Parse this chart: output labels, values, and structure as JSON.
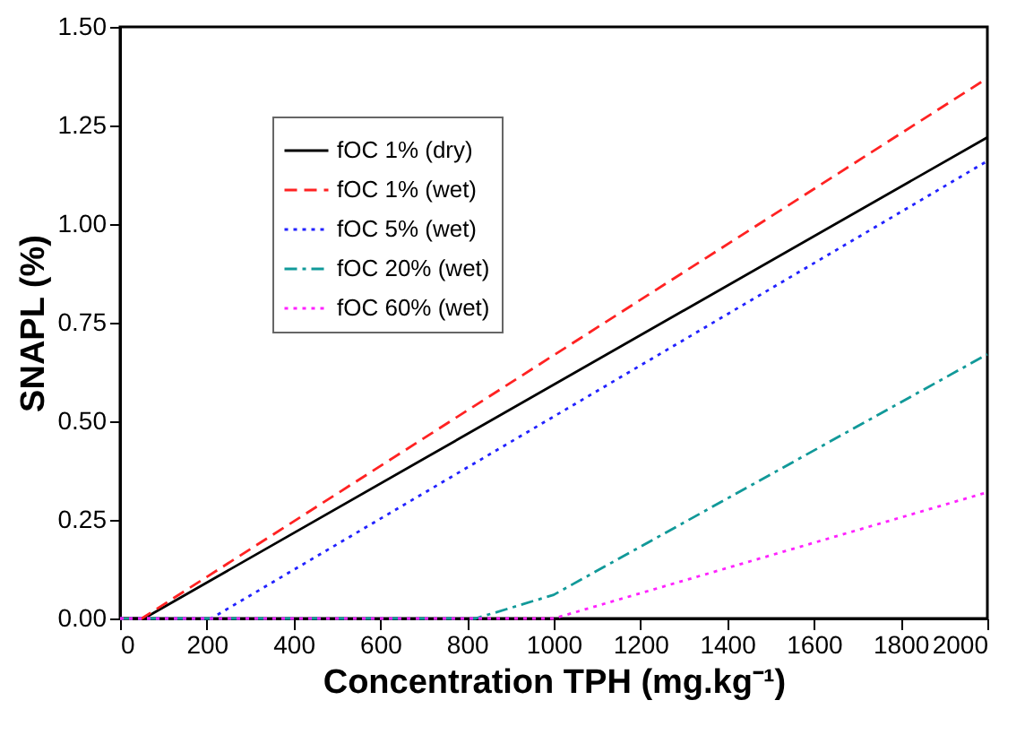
{
  "chart_data": {
    "type": "line",
    "xlabel": "Concentration TPH (mg.kg⁻¹)",
    "ylabel": "SNAPL (%)",
    "xlim": [
      0,
      2000
    ],
    "xticks": [
      0,
      200,
      400,
      600,
      800,
      1000,
      1200,
      1400,
      1600,
      1800,
      2000
    ],
    "ylim": [
      0,
      1.5
    ],
    "yticks": [
      {
        "value": 0,
        "label": "0.00"
      },
      {
        "value": 0.25,
        "label": "0.25"
      },
      {
        "value": 0.5,
        "label": "0.50"
      },
      {
        "value": 0.75,
        "label": "0.75"
      },
      {
        "value": 1,
        "label": "1.00"
      },
      {
        "value": 1.25,
        "label": "1.25"
      },
      {
        "value": 1.5,
        "label": "1.50"
      }
    ],
    "grid": false,
    "legend": "top left",
    "marker": "none",
    "series": [
      {
        "name": "fOC 1% (dry)",
        "color": "#000000",
        "line_style": "solid",
        "x": [
          0,
          55,
          2000
        ],
        "values": [
          0,
          0,
          1.22
        ]
      },
      {
        "name": "fOC 1% (wet)",
        "color": "#ff2222",
        "line_style": "dashed",
        "x": [
          0,
          50,
          2000
        ],
        "values": [
          0,
          0,
          1.37
        ]
      },
      {
        "name": "fOC 5% (wet)",
        "color": "#2222ff",
        "line_style": "dotted",
        "x": [
          0,
          210,
          2000
        ],
        "values": [
          0,
          0,
          1.16
        ]
      },
      {
        "name": "fOC 20% (wet)",
        "color": "#119999",
        "line_style": "dashdot",
        "x": [
          0,
          820,
          1000,
          2000
        ],
        "values": [
          0,
          0,
          0.06,
          0.67
        ]
      },
      {
        "name": "fOC 60% (wet)",
        "color": "#ff22ff",
        "line_style": "dotted",
        "x": [
          0,
          1000,
          2000
        ],
        "values": [
          0,
          0,
          0.32
        ]
      }
    ]
  }
}
